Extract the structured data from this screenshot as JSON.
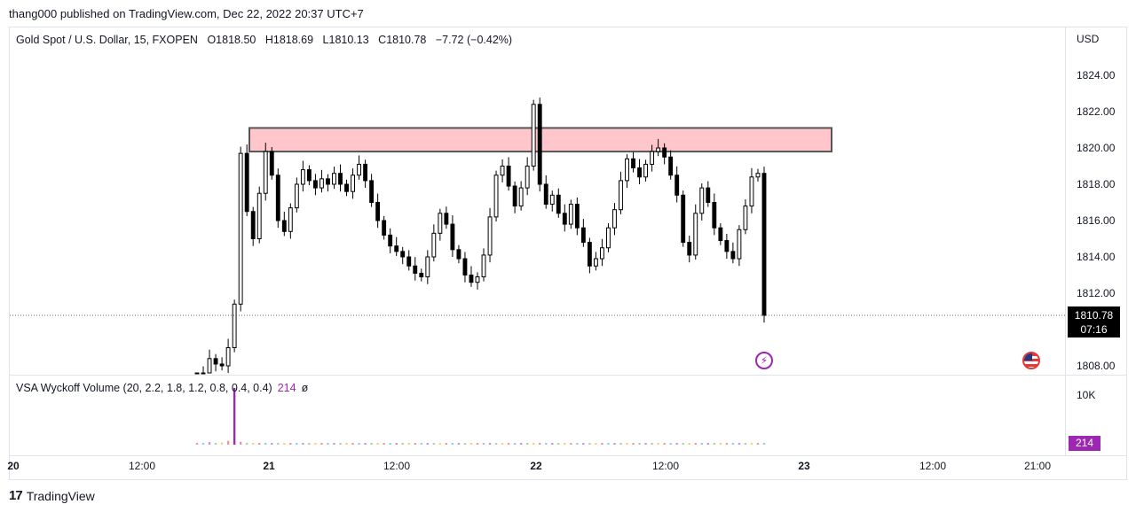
{
  "header": {
    "published_text": "thang000 published on TradingView.com, Dec 22, 2022 20:37 UTC+7"
  },
  "legend": {
    "symbol": "Gold Spot / U.S. Dollar, 15, FXOPEN",
    "open": "O1818.50",
    "high": "H1818.69",
    "low": "L1810.13",
    "close": "C1810.78",
    "change": "−7.72 (−0.42%)"
  },
  "volume_legend": {
    "name": "VSA Wyckoff Volume (20, 2.2, 1.8, 1.2, 0.8, 0.4, 0.4)",
    "value": "214",
    "null_symbol": "ø"
  },
  "price_axis": {
    "currency": "USD",
    "labels": [
      "1824.00",
      "1822.00",
      "1820.00",
      "1818.00",
      "1816.00",
      "1814.00",
      "1812.00",
      "1808.00"
    ]
  },
  "volume_axis": {
    "label": "10K",
    "badge": "214"
  },
  "last_price": {
    "price": "1810.78",
    "countdown": "07:16"
  },
  "time_axis": {
    "labels": [
      "20",
      "12:00",
      "21",
      "12:00",
      "22",
      "12:00",
      "23",
      "12:00",
      "21:00"
    ]
  },
  "brand": {
    "logo": "17",
    "name": "TradingView"
  },
  "colors": {
    "candle": "#000000",
    "zone_fill": "#ffc7cc",
    "zone_border": "#555555",
    "volume_accent": "#9c27b0",
    "last_price_bg": "#000000",
    "flash_icon": "#9c27b0",
    "flag_icon": "#e53935"
  },
  "icons": {
    "flash": "flash-icon",
    "flag": "us-flag-icon"
  },
  "chart_data": {
    "type": "candlestick",
    "title": "Gold Spot / U.S. Dollar, 15, FXOPEN",
    "ylabel": "USD",
    "ylim": [
      1807.5,
      1825.5
    ],
    "x_ticks": [
      "20",
      "12:00",
      "21",
      "12:00",
      "22",
      "12:00",
      "23",
      "12:00",
      "21:00"
    ],
    "supply_zone": {
      "low": 1819.8,
      "high": 1821.1,
      "color": "#ffc7cc"
    },
    "last_close": 1810.78,
    "closes": [
      1807.2,
      1807.6,
      1808.4,
      1808.1,
      1808.0,
      1809.0,
      1811.4,
      1819.7,
      1816.5,
      1815.0,
      1817.5,
      1819.8,
      1818.5,
      1816.0,
      1815.4,
      1816.7,
      1818.0,
      1818.8,
      1818.2,
      1817.8,
      1818.3,
      1818.0,
      1818.6,
      1818.0,
      1817.6,
      1818.5,
      1819.1,
      1818.2,
      1817.0,
      1816.0,
      1815.2,
      1814.6,
      1814.3,
      1814.0,
      1813.5,
      1813.1,
      1812.9,
      1814.0,
      1815.3,
      1816.4,
      1815.8,
      1814.4,
      1813.9,
      1813.0,
      1812.6,
      1812.9,
      1814.1,
      1816.2,
      1818.5,
      1819.0,
      1817.9,
      1816.8,
      1817.8,
      1819.0,
      1822.4,
      1818.0,
      1816.9,
      1817.4,
      1816.4,
      1815.8,
      1816.9,
      1815.6,
      1814.8,
      1813.5,
      1813.9,
      1814.5,
      1815.6,
      1816.6,
      1818.2,
      1819.4,
      1818.9,
      1818.4,
      1819.1,
      1819.8,
      1820.0,
      1819.5,
      1818.5,
      1817.4,
      1814.8,
      1814.1,
      1816.4,
      1817.8,
      1817.0,
      1815.6,
      1814.9,
      1814.3,
      1813.9,
      1815.5,
      1816.8,
      1818.4,
      1818.6,
      1810.78
    ],
    "volume": [
      60,
      40,
      80,
      50,
      70,
      120,
      214,
      90,
      60,
      40,
      50,
      60,
      40,
      30,
      50,
      40,
      30,
      40,
      30,
      50,
      40,
      30,
      40,
      30,
      30,
      40,
      30,
      40,
      50,
      40,
      30,
      40,
      30,
      30,
      40,
      30,
      30,
      40,
      30,
      40,
      30,
      40,
      30,
      30,
      40,
      30,
      40,
      30,
      40,
      50,
      40,
      30,
      40,
      50,
      60,
      40,
      30,
      40,
      30,
      40,
      30,
      30,
      40,
      30,
      40,
      30,
      40,
      30,
      40,
      30,
      40,
      30,
      40,
      30,
      40,
      30,
      40,
      30,
      40,
      30,
      40,
      30,
      40,
      30,
      30,
      40,
      30,
      40,
      30,
      40,
      30,
      50
    ]
  }
}
